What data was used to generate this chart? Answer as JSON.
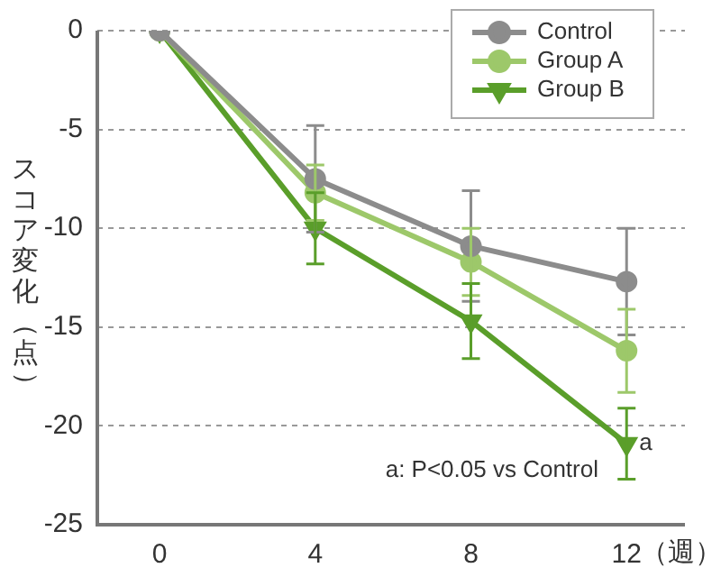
{
  "chart_data": {
    "type": "line",
    "ylabel": "スコア変化（点）",
    "xlabel": "（週）",
    "x": [
      0,
      4,
      8,
      12
    ],
    "xlim": [
      -1.6,
      13.5
    ],
    "xticks": [
      0,
      4,
      8,
      12
    ],
    "ylim": [
      -25,
      0
    ],
    "yticks": [
      -25,
      -20,
      -15,
      -10,
      -5,
      0
    ],
    "grid": "y",
    "legend": "top right",
    "line_style": "solid",
    "series": [
      {
        "name": "Control",
        "color": "#8c8c8c",
        "marker": "circle",
        "values": [
          0,
          -7.5,
          -10.9,
          -12.7
        ],
        "errors": [
          null,
          2.7,
          2.8,
          2.7
        ]
      },
      {
        "name": "Group A",
        "color": "#9dc86a",
        "marker": "circle",
        "values": [
          0,
          -8.2,
          -11.7,
          -16.2
        ],
        "errors": [
          null,
          1.4,
          1.7,
          2.1
        ]
      },
      {
        "name": "Group B",
        "color": "#5a9e2a",
        "marker": "triangle",
        "values": [
          0,
          -10,
          -14.7,
          -20.9
        ],
        "errors": [
          null,
          1.8,
          1.9,
          1.8
        ]
      }
    ],
    "annotations": [
      {
        "text": "a",
        "x": 12,
        "y": -20.9
      },
      "a: P<0.05 vs Control"
    ]
  }
}
